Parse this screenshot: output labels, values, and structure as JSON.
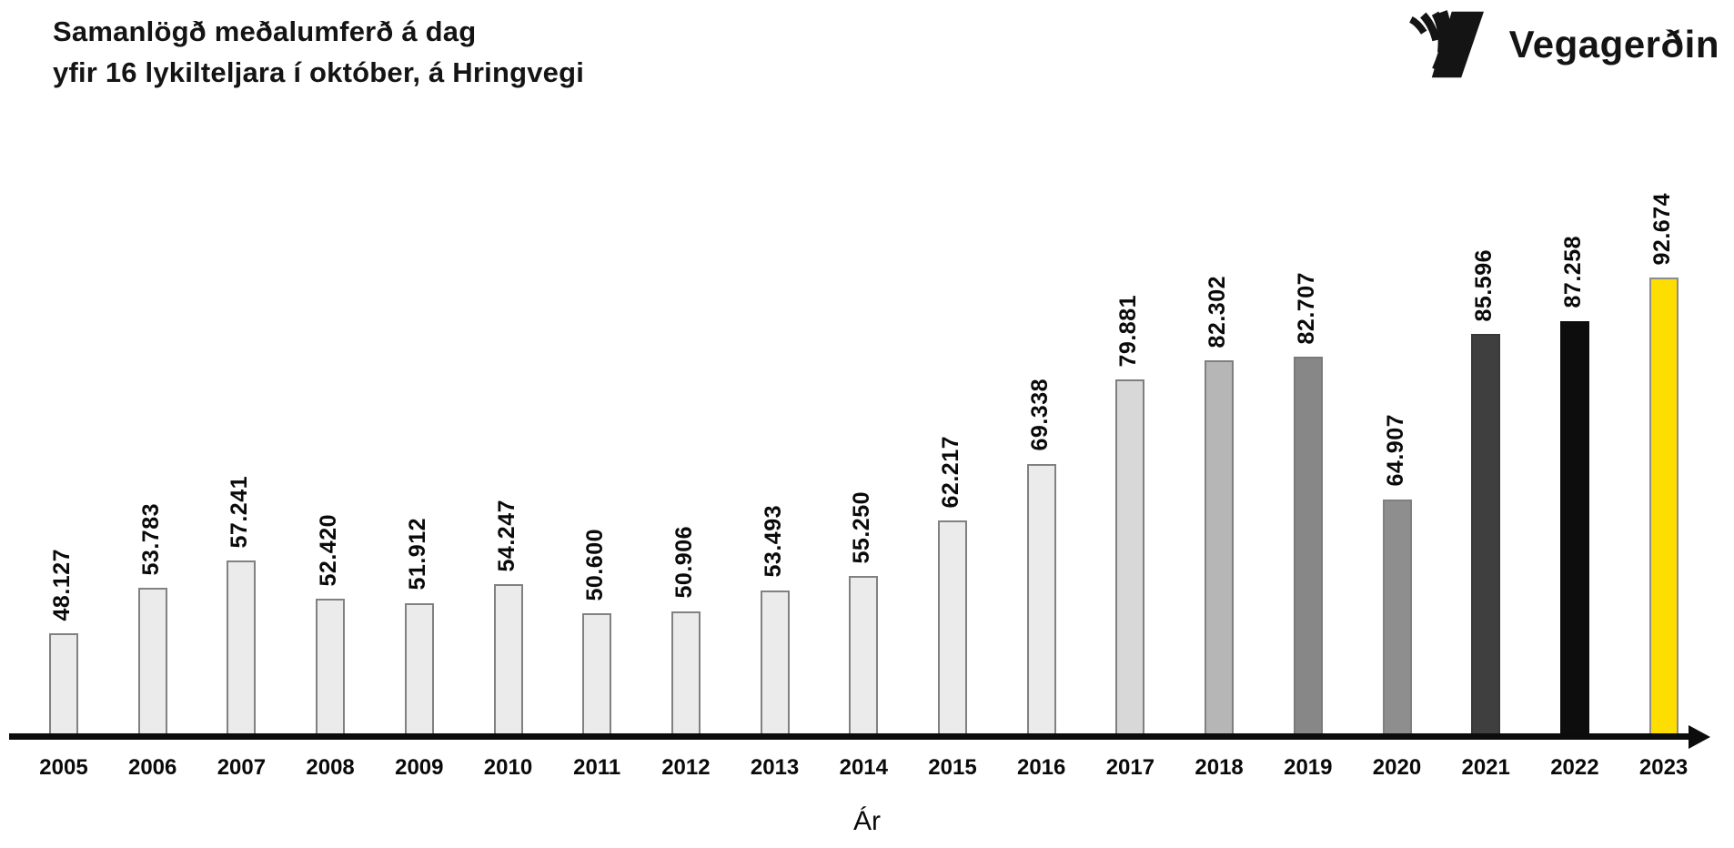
{
  "header": {
    "title_line1": "Samanlögð meðalumferð á dag",
    "title_line2": "yfir 16 lykilteljara í október, á Hringvegi"
  },
  "logo": {
    "text": "Vegagerðin",
    "mark": "vegagerdin-v-stripes-mark",
    "color": "#141414"
  },
  "chart_data": {
    "type": "bar",
    "title": "Samanlögð meðalumferð á dag yfir 16 lykilteljara í október, á Hringvegi",
    "xlabel": "Ár",
    "ylabel": "",
    "categories": [
      "2005",
      "2006",
      "2007",
      "2008",
      "2009",
      "2010",
      "2011",
      "2012",
      "2013",
      "2014",
      "2015",
      "2016",
      "2017",
      "2018",
      "2019",
      "2020",
      "2021",
      "2022",
      "2023"
    ],
    "values": [
      48127,
      53783,
      57241,
      52420,
      51912,
      54247,
      50600,
      50906,
      53493,
      55250,
      62217,
      69338,
      79881,
      82302,
      82707,
      64907,
      85596,
      87258,
      92674
    ],
    "value_labels": [
      "48.127",
      "53.783",
      "57.241",
      "52.420",
      "51.912",
      "54.247",
      "50.600",
      "50.906",
      "53.493",
      "55.250",
      "62.217",
      "69.338",
      "79.881",
      "82.302",
      "82.707",
      "64.907",
      "85.596",
      "87.258",
      "92.674"
    ],
    "bar_colors": [
      "#ebebeb",
      "#ebebeb",
      "#ebebeb",
      "#ebebeb",
      "#ebebeb",
      "#ebebeb",
      "#ebebeb",
      "#ebebeb",
      "#ebebeb",
      "#ebebeb",
      "#ebebeb",
      "#ebebeb",
      "#d8d8d8",
      "#b6b6b6",
      "#878787",
      "#8e8e8e",
      "#3f3f3f",
      "#0d0d0d",
      "#fedd00"
    ],
    "bar_border_colors": [
      "#818181",
      "#818181",
      "#818181",
      "#818181",
      "#818181",
      "#818181",
      "#818181",
      "#818181",
      "#818181",
      "#818181",
      "#818181",
      "#818181",
      "#7f7f7f",
      "#7f7f7f",
      "#7a7a7a",
      "#7f7f7f",
      "#383838",
      "#0d0d0d",
      "#8c8c8c"
    ],
    "highlight_color": "#fedd00",
    "axis_color": "#0c0c0c",
    "ylim": [
      35367,
      93000
    ],
    "grid": false,
    "legend": false,
    "bar_value_labels_rotated": true
  }
}
